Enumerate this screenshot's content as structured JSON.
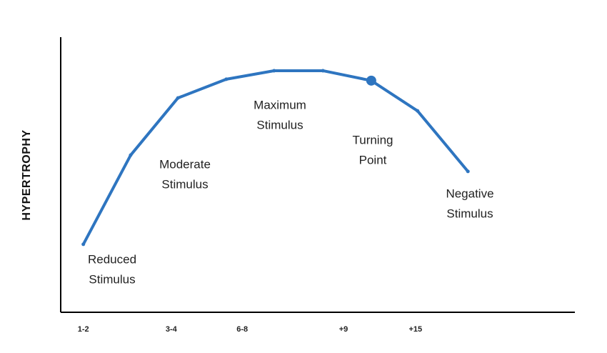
{
  "chart_data": {
    "type": "line",
    "y_label": "HYPERTROPHY",
    "x": [
      0.44,
      1.36,
      2.28,
      3.22,
      4.15,
      5.1,
      6.04,
      6.94,
      7.92
    ],
    "series": [
      {
        "color": "#2e75c0",
        "values": [
          24.7,
          57.1,
          77.9,
          84.7,
          87.8,
          87.8,
          84.2,
          73.2,
          51.2
        ]
      }
    ],
    "xlim": [
      0,
      10
    ],
    "ylim": [
      0,
      100
    ],
    "xticks": [
      {
        "value": 0.44,
        "label": "1-2"
      },
      {
        "value": 2.15,
        "label": "3-4"
      },
      {
        "value": 3.53,
        "label": "6-8"
      },
      {
        "value": 5.5,
        "label": "+9"
      },
      {
        "value": 6.9,
        "label": "+15"
      }
    ],
    "annotations": [
      [
        "Reduced",
        "Stimulus"
      ],
      [
        "Moderate",
        "Stimulus"
      ],
      [
        "Maximum",
        "Stimulus"
      ],
      [
        "Turning",
        "Point"
      ],
      [
        "Negative",
        "Stimulus"
      ]
    ]
  }
}
